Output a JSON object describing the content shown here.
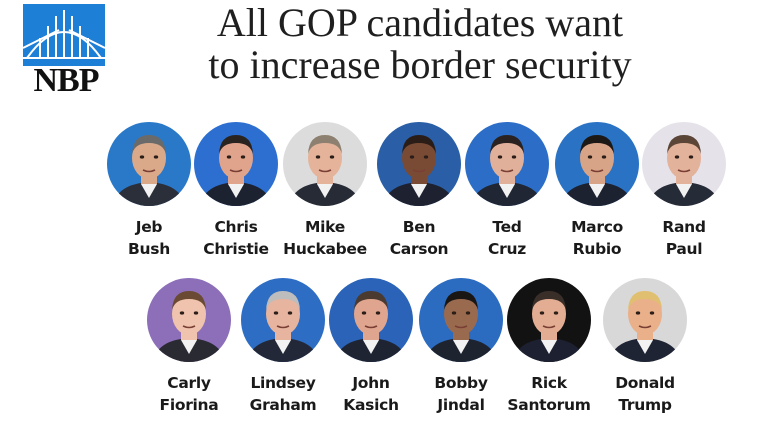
{
  "logo": {
    "text": "NBP",
    "mark_color": "#1d7fd6"
  },
  "headline": {
    "line1": "All GOP candidates want",
    "line2": "to increase border security"
  },
  "candidates_row1": [
    {
      "first": "Jeb",
      "last": "Bush",
      "bg": "#2a78c8",
      "skin": "#d9a98a",
      "hair": "#6a6a6a",
      "suit": "#2b2f3a"
    },
    {
      "first": "Chris",
      "last": "Christie",
      "bg": "#2c6fd1",
      "skin": "#e0a48c",
      "hair": "#2a2420",
      "suit": "#1d2230"
    },
    {
      "first": "Mike",
      "last": "Huckabee",
      "bg": "#dcdcdc",
      "skin": "#e4b39a",
      "hair": "#8d8070",
      "suit": "#262b36"
    },
    {
      "first": "Ben",
      "last": "Carson",
      "bg": "#2a5ea6",
      "skin": "#7a4b34",
      "hair": "#2a1d18",
      "suit": "#1e2230"
    },
    {
      "first": "Ted",
      "last": "Cruz",
      "bg": "#2c6ec7",
      "skin": "#e0b09a",
      "hair": "#2a2220",
      "suit": "#202634"
    },
    {
      "first": "Marco",
      "last": "Rubio",
      "bg": "#2a72c4",
      "skin": "#d8a487",
      "hair": "#1c1816",
      "suit": "#1d2231"
    },
    {
      "first": "Rand",
      "last": "Paul",
      "bg": "#e6e2ea",
      "skin": "#e3b29a",
      "hair": "#5a4536",
      "suit": "#262b38"
    }
  ],
  "candidates_row2": [
    {
      "first": "Carly",
      "last": "Fiorina",
      "bg": "#8c6fb8",
      "skin": "#efc3ad",
      "hair": "#6a4a32",
      "suit": "#2a2a33"
    },
    {
      "first": "Lindsey",
      "last": "Graham",
      "bg": "#2d6ec4",
      "skin": "#e6b49f",
      "hair": "#bdbdbd",
      "suit": "#232838"
    },
    {
      "first": "John",
      "last": "Kasich",
      "bg": "#2a63b8",
      "skin": "#dfa58f",
      "hair": "#4a3a30",
      "suit": "#1f2432"
    },
    {
      "first": "Bobby",
      "last": "Jindal",
      "bg": "#2b6bc0",
      "skin": "#9a6a4e",
      "hair": "#1a1614",
      "suit": "#1e2330"
    },
    {
      "first": "Rick",
      "last": "Santorum",
      "bg": "#121212",
      "skin": "#e3ad93",
      "hair": "#3a2e28",
      "suit": "#1c2030"
    },
    {
      "first": "Donald",
      "last": "Trump",
      "bg": "#d8d8d8",
      "skin": "#e9b08a",
      "hair": "#e0c070",
      "suit": "#1e2434"
    }
  ]
}
